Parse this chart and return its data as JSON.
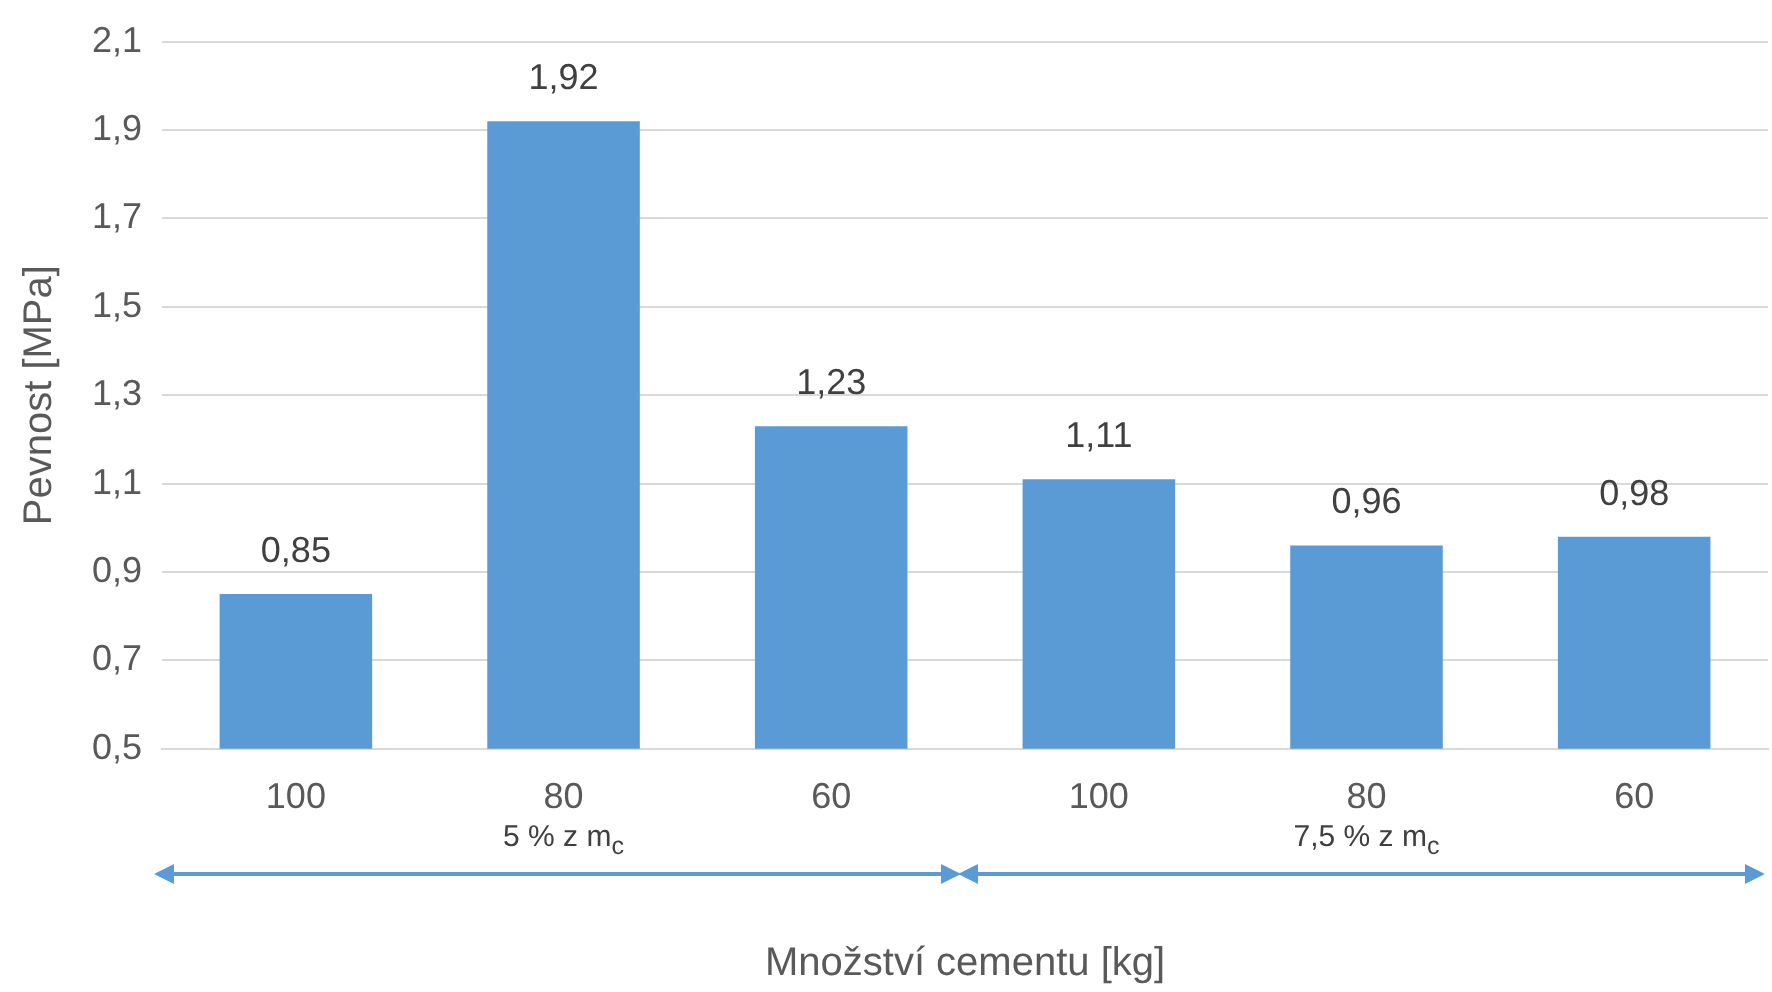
{
  "chart_data": {
    "type": "bar",
    "ylabel": "Pevnost [MPa]",
    "xlabel": "Množství cementu [kg]",
    "categories": [
      "100",
      "80",
      "60",
      "100",
      "80",
      "60"
    ],
    "values": [
      0.85,
      1.92,
      1.23,
      1.11,
      0.96,
      0.98
    ],
    "value_labels": [
      "0,85",
      "1,92",
      "1,23",
      "1,11",
      "0,96",
      "0,98"
    ],
    "color": "#5b9bd5",
    "ylim": [
      0.5,
      2.1
    ],
    "yticks": [
      {
        "value": 0.5,
        "label": "0,5"
      },
      {
        "value": 0.7,
        "label": "0,7"
      },
      {
        "value": 0.9,
        "label": "0,9"
      },
      {
        "value": 1.1,
        "label": "1,1"
      },
      {
        "value": 1.3,
        "label": "1,3"
      },
      {
        "value": 1.5,
        "label": "1,5"
      },
      {
        "value": 1.7,
        "label": "1,7"
      },
      {
        "value": 1.9,
        "label": "1,9"
      },
      {
        "value": 2.1,
        "label": "2,1"
      }
    ],
    "grid": "y",
    "annotations": [
      "5 % z m$_{c}$",
      "7,5 % z m$_{c}$"
    ]
  }
}
